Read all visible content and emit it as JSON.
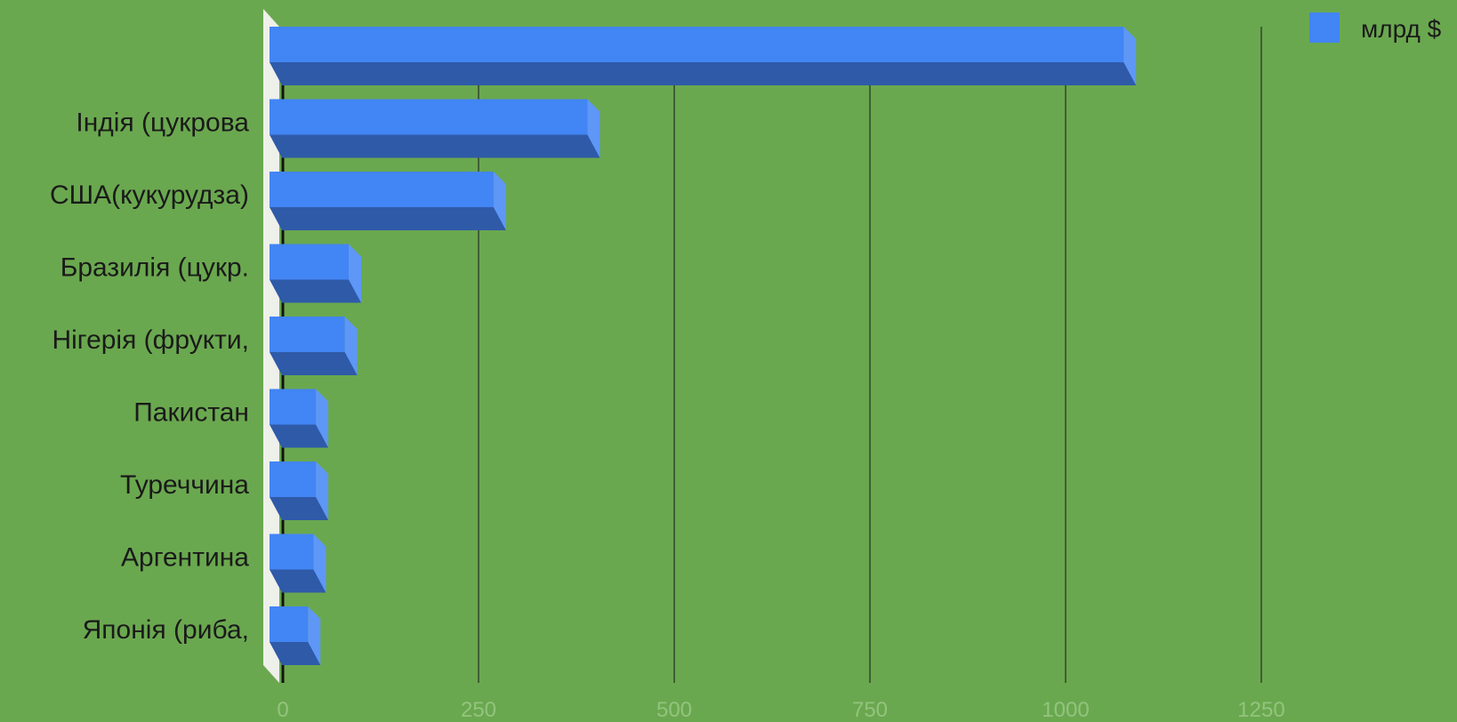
{
  "chart_data": {
    "type": "bar",
    "orientation": "horizontal",
    "style": "3d",
    "categories": [
      "",
      "Індія (цукрова",
      "США(кукурудза)",
      "Бразилія (цукр.",
      "Нігерія (фрукти,",
      "Пакистан",
      "Туреччина",
      "Аргентина",
      "Японія (риба,"
    ],
    "series": [
      {
        "name": "млрд $",
        "values": [
          1090,
          405,
          285,
          100,
          95,
          58,
          58,
          55,
          48
        ]
      }
    ],
    "x_ticks": [
      "0",
      "250",
      "500",
      "750",
      "1000",
      "1250"
    ],
    "xlim": [
      0,
      1250
    ],
    "grid": true,
    "legend_position": "top-right",
    "colors": {
      "background": "#6aa84f",
      "bar_front": "#4285f4",
      "bar_bottom": "#2f5aa8",
      "bar_side": "#5e97f6",
      "gridline": "#3f5f35",
      "tick_label": "#93c47d",
      "axis_wall": "#eef0ea"
    }
  }
}
